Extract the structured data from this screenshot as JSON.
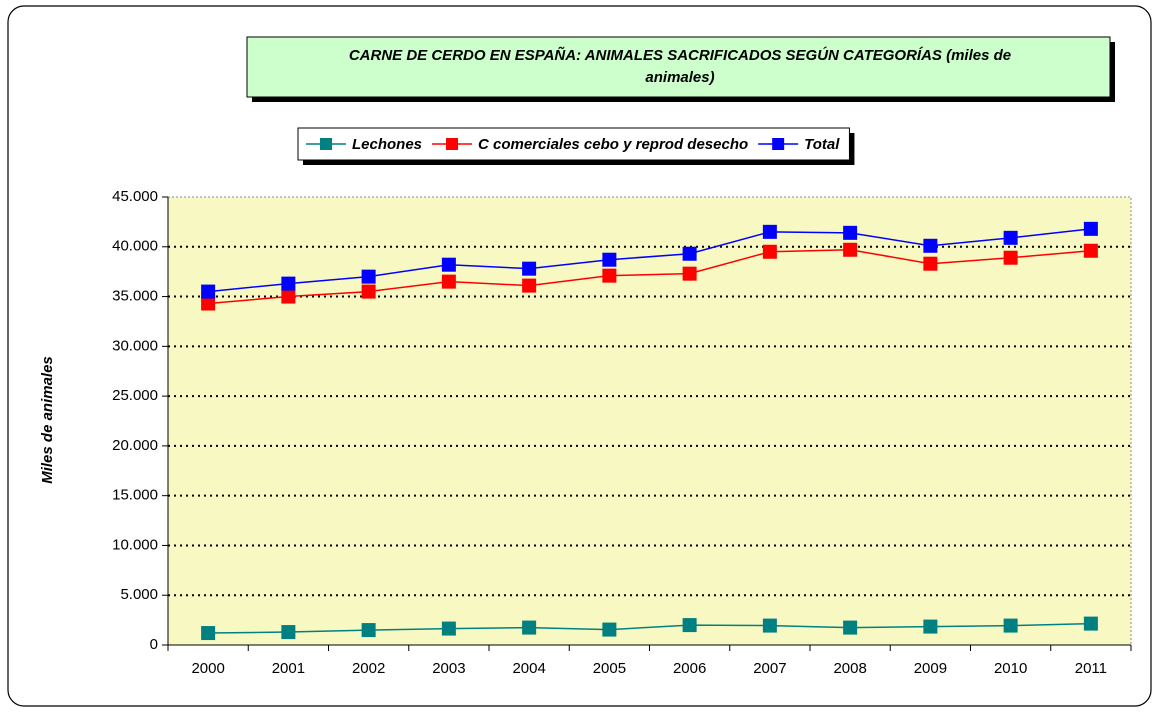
{
  "chart_data": {
    "type": "line",
    "title": "CARNE DE CERDO EN ESPAÑA: ANIMALES SACRIFICADOS SEGÚN CATEGORÍAS (miles de animales)",
    "ylabel": "Miles de animales",
    "categories": [
      "2000",
      "2001",
      "2002",
      "2003",
      "2004",
      "2005",
      "2006",
      "2007",
      "2008",
      "2009",
      "2010",
      "2011"
    ],
    "series": [
      {
        "name": "Lechones",
        "color": "#008080",
        "values": [
          1200,
          1300,
          1500,
          1650,
          1750,
          1550,
          2000,
          1950,
          1750,
          1850,
          1950,
          2150
        ]
      },
      {
        "name": "C comerciales cebo y reprod desecho",
        "color": "#ff0000",
        "values": [
          34300,
          35000,
          35500,
          36500,
          36100,
          37100,
          37300,
          39500,
          39700,
          38300,
          38900,
          39600
        ]
      },
      {
        "name": "Total",
        "color": "#0000ff",
        "values": [
          35500,
          36300,
          37000,
          38200,
          37800,
          38700,
          39300,
          41500,
          41400,
          40100,
          40900,
          41800
        ]
      }
    ],
    "ylim": [
      0,
      45000
    ],
    "yticks": [
      0,
      {
        "value": 5000,
        "label": "5.000"
      },
      {
        "value": 10000,
        "label": "10.000"
      },
      {
        "value": 15000,
        "label": "15.000"
      },
      {
        "value": 20000,
        "label": "20.000"
      },
      {
        "value": 25000,
        "label": "25.000"
      },
      {
        "value": 30000,
        "label": "30.000"
      },
      {
        "value": 35000,
        "label": "35.000"
      },
      {
        "value": 40000,
        "label": "40.000"
      },
      {
        "value": 45000,
        "label": "45.000"
      }
    ],
    "grid": true,
    "legend": "top"
  }
}
